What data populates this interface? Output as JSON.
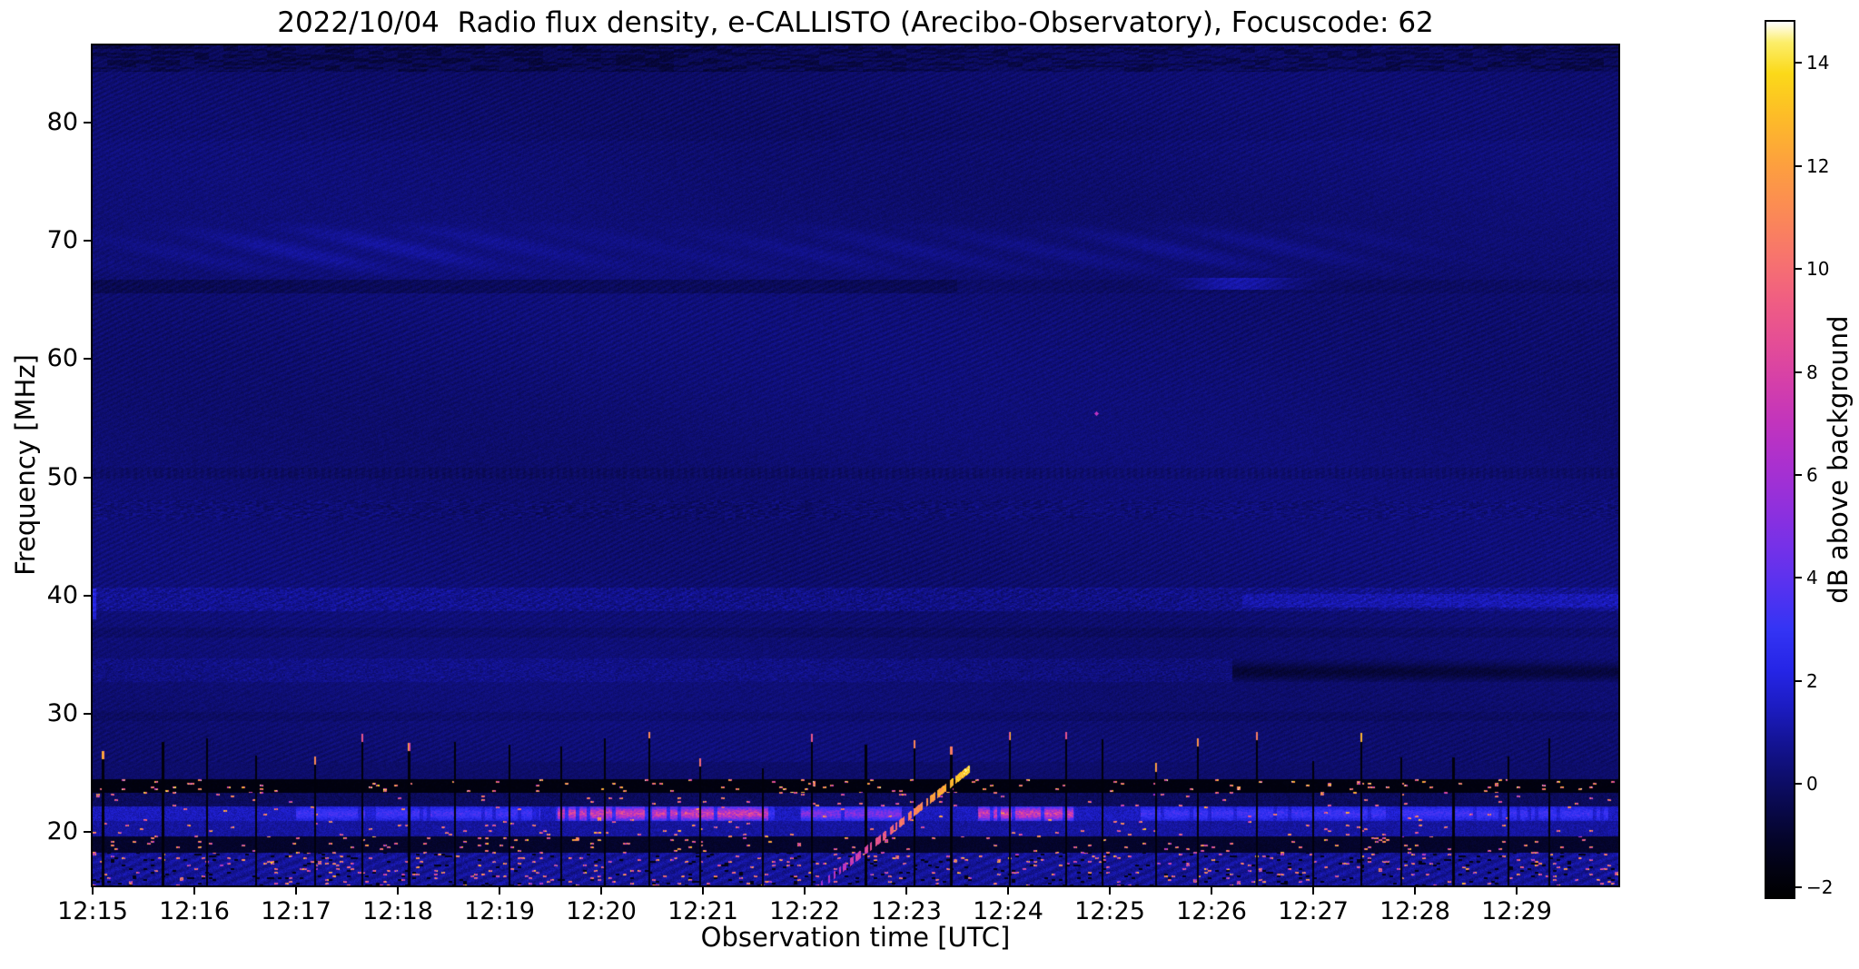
{
  "figure": {
    "background": "#ffffff"
  },
  "chart_data": {
    "type": "heatmap",
    "title": "2022/10/04  Radio flux density, e-CALLISTO (Arecibo-Observatory), Focuscode: 62",
    "xlabel": "Observation time [UTC]",
    "ylabel": "Frequency [MHz]",
    "x_tick_labels": [
      "12:15",
      "12:16",
      "12:17",
      "12:18",
      "12:19",
      "12:20",
      "12:21",
      "12:22",
      "12:23",
      "12:24",
      "12:25",
      "12:26",
      "12:27",
      "12:28",
      "12:29"
    ],
    "x_range_minutes": [
      0,
      15
    ],
    "x_start_utc": "12:15",
    "y_ticks": [
      20,
      30,
      40,
      50,
      60,
      70,
      80
    ],
    "y_range_mhz": [
      15.5,
      86.5
    ],
    "grid": false,
    "colorbar": {
      "label": "dB above background",
      "ticks": [
        -2,
        0,
        2,
        4,
        6,
        8,
        10,
        12,
        14
      ],
      "range": [
        -2.2,
        14.8
      ],
      "stops": [
        [
          -2.2,
          "#000000"
        ],
        [
          -1.6,
          "#020214"
        ],
        [
          -1.0,
          "#05052e"
        ],
        [
          -0.4,
          "#09094e"
        ],
        [
          0.2,
          "#0e0e70"
        ],
        [
          0.8,
          "#131394"
        ],
        [
          1.5,
          "#1c1cc2"
        ],
        [
          2.2,
          "#2525e6"
        ],
        [
          3.0,
          "#3434f4"
        ],
        [
          3.8,
          "#5532f0"
        ],
        [
          4.6,
          "#7531e8"
        ],
        [
          5.4,
          "#9130dc"
        ],
        [
          6.2,
          "#aa30cf"
        ],
        [
          7.0,
          "#c134bd"
        ],
        [
          7.8,
          "#d53fa9"
        ],
        [
          8.6,
          "#e54e95"
        ],
        [
          9.4,
          "#f05e82"
        ],
        [
          10.2,
          "#f7736e"
        ],
        [
          11.0,
          "#fb8758"
        ],
        [
          12.0,
          "#fd9f3f"
        ],
        [
          13.0,
          "#fdbd27"
        ],
        [
          13.8,
          "#fbd919"
        ],
        [
          14.4,
          "#fcee6a"
        ],
        [
          14.8,
          "#ffffff"
        ]
      ]
    },
    "features": {
      "background_db": 0.1,
      "drifting_feature": {
        "t0_min": 7.15,
        "t1_min": 8.62,
        "f0_mhz": 15.5,
        "f1_mhz": 25.4,
        "peak_db": 13
      },
      "rfi_dark_bands_mhz": [
        [
          18.3,
          19.6
        ],
        [
          23.35,
          24.55
        ]
      ],
      "rfi_active_band_mhz": [
        20.95,
        22.25
      ],
      "enhanced_patches_min": [
        [
          4.55,
          6.7,
          1.0
        ],
        [
          8.7,
          9.65,
          1.0
        ],
        [
          6.95,
          7.95,
          0.55
        ],
        [
          2.0,
          4.4,
          0.3
        ],
        [
          10.3,
          14.9,
          0.28
        ]
      ],
      "bright_band_70mhz": [
        66.8,
        71.8
      ],
      "dark_band_66mhz": [
        65.6,
        66.7
      ],
      "band_40mhz": [
        38.7,
        40.7
      ],
      "band_34mhz": [
        32.7,
        34.7
      ],
      "spike_interval_min": 0.49,
      "spot": {
        "t_min": 9.87,
        "f_mhz": 55.4,
        "db": 7
      }
    }
  }
}
